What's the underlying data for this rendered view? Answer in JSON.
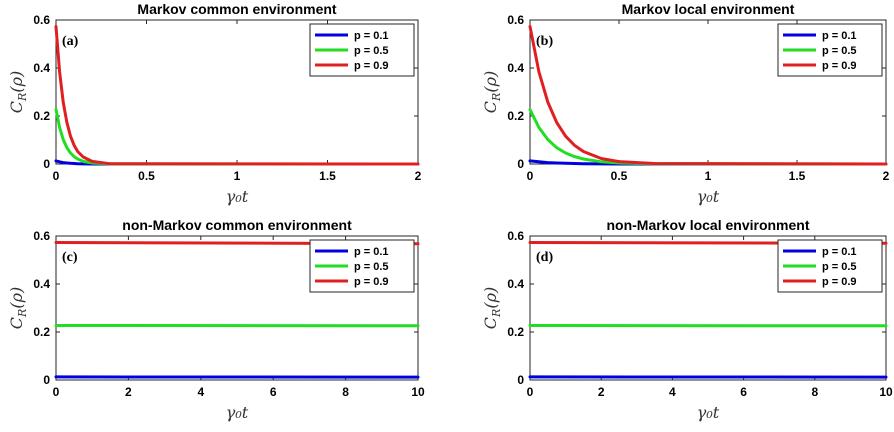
{
  "chart_data": [
    {
      "type": "line",
      "panel": "(a)",
      "title": "Markov common environment",
      "xlabel": "γ₀t",
      "ylabel": "C_R(ρ)",
      "xlim": [
        0,
        2
      ],
      "ylim": [
        0,
        0.6
      ],
      "xticks": [
        0,
        0.5,
        1,
        1.5,
        2
      ],
      "yticks": [
        0,
        0.2,
        0.4,
        0.6
      ],
      "xtick_labels": [
        "0",
        "0.5",
        "1",
        "1.5",
        "2"
      ],
      "ytick_labels": [
        "0",
        "0.2",
        "0.4",
        "0.6"
      ],
      "legend_position": "top-right",
      "series": [
        {
          "name": "p = 0.1",
          "color": "#0000e0",
          "x": [
            0,
            0.02,
            0.04,
            0.06,
            0.08,
            0.1,
            0.12,
            0.15,
            0.2,
            0.3,
            2
          ],
          "y": [
            0.013,
            0.009,
            0.006,
            0.004,
            0.003,
            0.002,
            0.001,
            0.0005,
            0.0002,
            0,
            0
          ]
        },
        {
          "name": "p = 0.5",
          "color": "#22dd22",
          "x": [
            0,
            0.02,
            0.04,
            0.06,
            0.08,
            0.1,
            0.12,
            0.15,
            0.2,
            0.3,
            2
          ],
          "y": [
            0.227,
            0.152,
            0.102,
            0.068,
            0.046,
            0.031,
            0.021,
            0.011,
            0.004,
            0.0005,
            0
          ]
        },
        {
          "name": "p = 0.9",
          "color": "#e02020",
          "x": [
            0,
            0.02,
            0.04,
            0.06,
            0.08,
            0.1,
            0.12,
            0.15,
            0.2,
            0.3,
            2
          ],
          "y": [
            0.573,
            0.384,
            0.258,
            0.173,
            0.116,
            0.078,
            0.052,
            0.029,
            0.011,
            0.001,
            0
          ]
        }
      ]
    },
    {
      "type": "line",
      "panel": "(b)",
      "title": "Markov local environment",
      "xlabel": "γ₀t",
      "ylabel": "C_R(ρ)",
      "xlim": [
        0,
        2
      ],
      "ylim": [
        0,
        0.6
      ],
      "xticks": [
        0,
        0.5,
        1,
        1.5,
        2
      ],
      "yticks": [
        0,
        0.2,
        0.4,
        0.6
      ],
      "xtick_labels": [
        "0",
        "0.5",
        "1",
        "1.5",
        "2"
      ],
      "ytick_labels": [
        "0",
        "0.2",
        "0.4",
        "0.6"
      ],
      "legend_position": "top-right",
      "series": [
        {
          "name": "p = 0.1",
          "color": "#0000e0",
          "x": [
            0,
            0.05,
            0.1,
            0.15,
            0.2,
            0.25,
            0.3,
            0.4,
            0.5,
            0.7,
            2
          ],
          "y": [
            0.013,
            0.009,
            0.006,
            0.004,
            0.003,
            0.002,
            0.0012,
            0.0005,
            0.0002,
            0,
            0
          ]
        },
        {
          "name": "p = 0.5",
          "color": "#22dd22",
          "x": [
            0,
            0.05,
            0.1,
            0.15,
            0.2,
            0.25,
            0.3,
            0.4,
            0.5,
            0.7,
            2
          ],
          "y": [
            0.227,
            0.152,
            0.102,
            0.068,
            0.046,
            0.031,
            0.021,
            0.009,
            0.004,
            0.001,
            0
          ]
        },
        {
          "name": "p = 0.9",
          "color": "#e02020",
          "x": [
            0,
            0.05,
            0.1,
            0.15,
            0.2,
            0.25,
            0.3,
            0.4,
            0.5,
            0.7,
            2
          ],
          "y": [
            0.573,
            0.384,
            0.258,
            0.173,
            0.116,
            0.078,
            0.052,
            0.023,
            0.01,
            0.002,
            0
          ]
        }
      ]
    },
    {
      "type": "line",
      "panel": "(c)",
      "title": "non-Markov common environment",
      "xlabel": "γ₀t",
      "ylabel": "C_R(ρ)",
      "xlim": [
        0,
        10
      ],
      "ylim": [
        0,
        0.6
      ],
      "xticks": [
        0,
        2,
        4,
        6,
        8,
        10
      ],
      "yticks": [
        0,
        0.2,
        0.4,
        0.6
      ],
      "xtick_labels": [
        "0",
        "2",
        "4",
        "6",
        "8",
        "10"
      ],
      "ytick_labels": [
        "0",
        "0.2",
        "0.4",
        "0.6"
      ],
      "legend_position": "top-right",
      "series": [
        {
          "name": "p = 0.1",
          "color": "#0000e0",
          "x": [
            0,
            10
          ],
          "y": [
            0.013,
            0.012
          ]
        },
        {
          "name": "p = 0.5",
          "color": "#22dd22",
          "x": [
            0,
            10
          ],
          "y": [
            0.227,
            0.226
          ]
        },
        {
          "name": "p = 0.9",
          "color": "#e02020",
          "x": [
            0,
            10
          ],
          "y": [
            0.573,
            0.568
          ]
        }
      ]
    },
    {
      "type": "line",
      "panel": "(d)",
      "title": "non-Markov local environment",
      "xlabel": "γ₀t",
      "ylabel": "C_R(ρ)",
      "xlim": [
        0,
        10
      ],
      "ylim": [
        0,
        0.6
      ],
      "xticks": [
        0,
        2,
        4,
        6,
        8,
        10
      ],
      "yticks": [
        0,
        0.2,
        0.4,
        0.6
      ],
      "xtick_labels": [
        "0",
        "2",
        "4",
        "6",
        "8",
        "10"
      ],
      "ytick_labels": [
        "0",
        "0.2",
        "0.4",
        "0.6"
      ],
      "legend_position": "top-right",
      "series": [
        {
          "name": "p = 0.1",
          "color": "#0000e0",
          "x": [
            0,
            10
          ],
          "y": [
            0.013,
            0.012
          ]
        },
        {
          "name": "p = 0.5",
          "color": "#22dd22",
          "x": [
            0,
            10
          ],
          "y": [
            0.227,
            0.226
          ]
        },
        {
          "name": "p = 0.9",
          "color": "#e02020",
          "x": [
            0,
            10
          ],
          "y": [
            0.573,
            0.57
          ]
        }
      ]
    }
  ]
}
